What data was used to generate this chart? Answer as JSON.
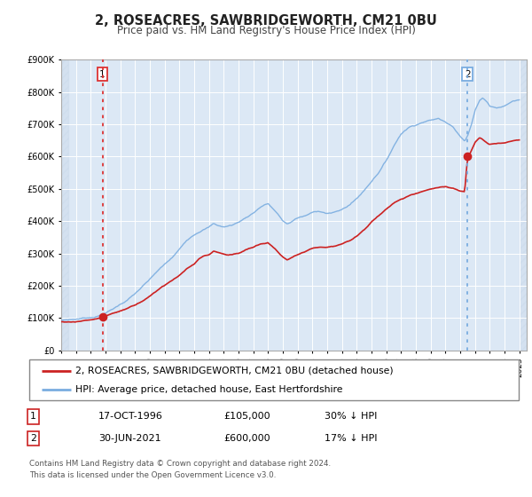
{
  "title": "2, ROSEACRES, SAWBRIDGEWORTH, CM21 0BU",
  "subtitle": "Price paid vs. HM Land Registry's House Price Index (HPI)",
  "ylim": [
    0,
    900000
  ],
  "xlim_start": 1994.0,
  "xlim_end": 2025.5,
  "fig_bg_color": "#ffffff",
  "plot_bg_color": "#dce8f5",
  "hatch_color": "#c8d8ea",
  "grid_color": "#ffffff",
  "sale1_date": 1996.79,
  "sale1_price": 105000,
  "sale2_date": 2021.49,
  "sale2_price": 600000,
  "red_line_color": "#cc2222",
  "blue_line_color": "#7aade0",
  "vline1_color": "#dd3333",
  "vline2_color": "#7aade0",
  "marker_color": "#cc2222",
  "legend_label_red": "2, ROSEACRES, SAWBRIDGEWORTH, CM21 0BU (detached house)",
  "legend_label_blue": "HPI: Average price, detached house, East Hertfordshire",
  "table_row1": [
    "1",
    "17-OCT-1996",
    "£105,000",
    "30% ↓ HPI"
  ],
  "table_row2": [
    "2",
    "30-JUN-2021",
    "£600,000",
    "17% ↓ HPI"
  ],
  "footer": "Contains HM Land Registry data © Crown copyright and database right 2024.\nThis data is licensed under the Open Government Licence v3.0."
}
